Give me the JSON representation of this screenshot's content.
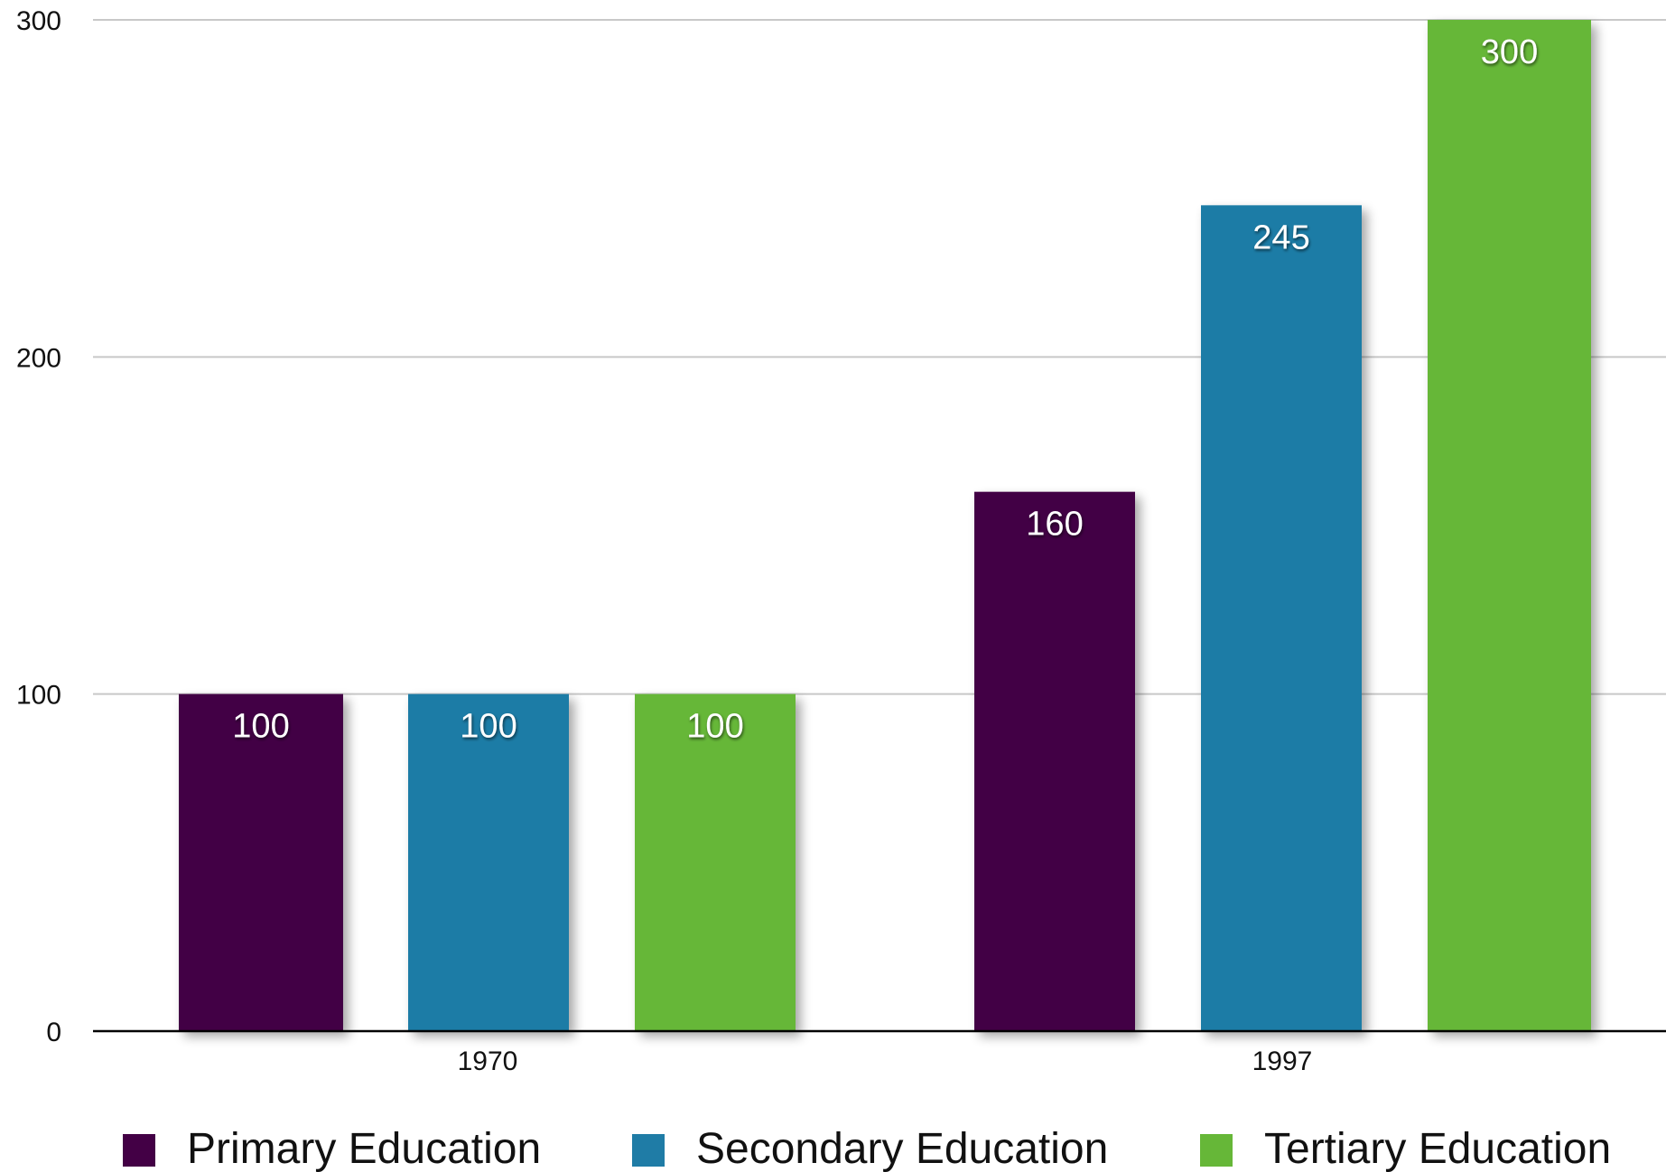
{
  "chart_data": {
    "type": "bar",
    "categories": [
      "1970",
      "1997"
    ],
    "series": [
      {
        "name": "Primary Education",
        "color": "#430045",
        "values": [
          100,
          160
        ]
      },
      {
        "name": "Secondary Education",
        "color": "#1f7ca6",
        "values": [
          100,
          245
        ]
      },
      {
        "name": "Tertiary Education",
        "color": "#66b738",
        "values": [
          100,
          300
        ]
      }
    ],
    "ylim": [
      0,
      300
    ],
    "yticks": [
      0,
      100,
      200,
      300
    ],
    "grid": true,
    "data_labels": true,
    "legend": "bottom",
    "title": "",
    "xlabel": "",
    "ylabel": ""
  }
}
